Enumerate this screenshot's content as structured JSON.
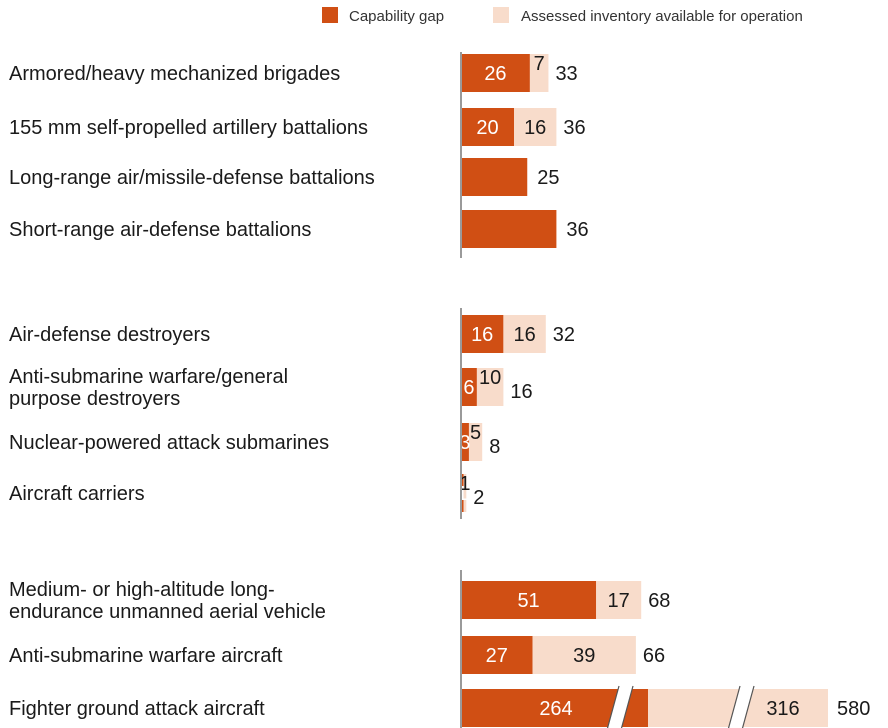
{
  "legend": {
    "gap_label": "Capability gap",
    "inventory_label": "Assessed inventory available for operation"
  },
  "colors": {
    "gap": "#d04f14",
    "inventory": "#f8dccb",
    "axis": "#9a9a9a",
    "label_on_gap": "#ffffff",
    "label_on_inventory": "#1a1a1a"
  },
  "chart_data": {
    "type": "bar",
    "orientation": "horizontal",
    "stacked": true,
    "groups": [
      {
        "categories": [
          {
            "label": "Armored/heavy mechanized brigades",
            "gap": 26,
            "inventory": 7,
            "total": 33
          },
          {
            "label": "155 mm self-propelled artillery battalions",
            "gap": 20,
            "inventory": 16,
            "total": 36
          },
          {
            "label": "Long-range air/missile-defense battalions",
            "gap": 25,
            "inventory": 0,
            "total": 25
          },
          {
            "label": "Short-range air-defense battalions",
            "gap": 36,
            "inventory": 0,
            "total": 36
          }
        ]
      },
      {
        "categories": [
          {
            "label": "Air-defense destroyers",
            "gap": 16,
            "inventory": 16,
            "total": 32
          },
          {
            "label": "Anti-submarine warfare/general purpose destroyers",
            "gap": 6,
            "inventory": 10,
            "total": 16
          },
          {
            "label": "Nuclear-powered attack submarines",
            "gap": 3,
            "inventory": 5,
            "total": 8
          },
          {
            "label": "Aircraft carriers",
            "gap": 1,
            "inventory": 1,
            "total": 2
          }
        ]
      },
      {
        "categories": [
          {
            "label": "Medium- or high-altitude long-endurance unmanned aerial vehicle",
            "gap": 51,
            "inventory": 17,
            "total": 68
          },
          {
            "label": "Anti-submarine warfare aircraft",
            "gap": 27,
            "inventory": 39,
            "total": 66
          },
          {
            "label": "Fighter ground attack aircraft",
            "gap": 264,
            "inventory": 316,
            "total": 580,
            "axis_break": true
          }
        ]
      }
    ]
  }
}
